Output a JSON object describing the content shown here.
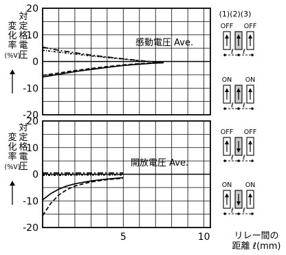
{
  "chart_data": [
    {
      "type": "line",
      "annotation": "感動電圧 Ave.",
      "ylabel": [
        "変",
        "化",
        "率",
        "(%V)",
        "対",
        "定",
        "格",
        "電",
        "圧"
      ],
      "xlim": [
        0,
        10.4
      ],
      "ylim": [
        -20,
        20
      ],
      "yticks": [
        "20",
        "10",
        "0",
        "-10",
        "-20"
      ],
      "series": [
        {
          "style": "solid",
          "x": [
            0,
            1,
            2,
            3,
            4,
            5,
            6,
            7,
            7.5
          ],
          "y": [
            -5.8,
            -4.8,
            -3.8,
            -3.0,
            -2.2,
            -1.5,
            -1.0,
            -0.6,
            -0.5
          ]
        },
        {
          "style": "dashed",
          "x": [
            0,
            1,
            2,
            3,
            4,
            5,
            6,
            7,
            7.5
          ],
          "y": [
            -5.2,
            -4.3,
            -3.4,
            -2.6,
            -1.9,
            -1.3,
            -0.8,
            -0.5,
            -0.4
          ]
        },
        {
          "style": "dashdot",
          "x": [
            0,
            1,
            2,
            3,
            4,
            5,
            6,
            7,
            7.5
          ],
          "y": [
            5.4,
            4.2,
            3.3,
            2.4,
            1.7,
            1.0,
            0.4,
            -0.2,
            -0.4
          ]
        },
        {
          "style": "dashdot2",
          "x": [
            0,
            1,
            2,
            3,
            4,
            5,
            6,
            7,
            7.5
          ],
          "y": [
            4.2,
            3.5,
            2.8,
            2.1,
            1.5,
            0.9,
            0.3,
            -0.2,
            -0.3
          ]
        }
      ]
    },
    {
      "type": "line",
      "annotation": "開放電圧 Ave.",
      "ylabel": [
        "変",
        "化",
        "率",
        "(%V)",
        "対",
        "定",
        "格",
        "電",
        "圧"
      ],
      "xlim": [
        0,
        10.4
      ],
      "ylim": [
        -20,
        20
      ],
      "yticks": [
        "20",
        "10",
        "0",
        "-10",
        "-20"
      ],
      "xticks": [
        {
          "value": 5,
          "label": "5"
        },
        {
          "value": 10,
          "label": "10"
        }
      ],
      "xlabel": [
        "リレー間の",
        "距離 ℓ(mm)"
      ],
      "series": [
        {
          "style": "solid",
          "x": [
            0,
            0.5,
            1,
            1.5,
            2,
            3,
            4,
            5
          ],
          "y": [
            -9.6,
            -7.3,
            -5.6,
            -4.4,
            -3.6,
            -2.5,
            -1.8,
            -1.3
          ]
        },
        {
          "style": "dashed",
          "x": [
            0,
            0.5,
            1,
            1.5,
            2,
            3,
            4,
            5
          ],
          "y": [
            -15.5,
            -11.0,
            -7.8,
            -5.8,
            -4.4,
            -2.9,
            -2.0,
            -1.5
          ]
        },
        {
          "style": "dashdot",
          "x": [
            0,
            1,
            2,
            3,
            4,
            5
          ],
          "y": [
            0.5,
            0.5,
            0.5,
            0.5,
            0.5,
            0.5
          ]
        },
        {
          "style": "dashdot2",
          "x": [
            0,
            1,
            2,
            3,
            4,
            5
          ],
          "y": [
            -0.4,
            -0.4,
            -0.3,
            -0.3,
            -0.3,
            -0.3
          ]
        }
      ]
    }
  ],
  "legend": {
    "positions": [
      "(1)",
      "(2)",
      "(3)"
    ],
    "ell": "ℓ",
    "groups": [
      {
        "left": "OFF",
        "right": "OFF",
        "arrows": [
          "up",
          "up",
          "up"
        ],
        "markers": "dots"
      },
      {
        "left": "ON",
        "right": "ON",
        "arrows": [
          "up",
          "up",
          "up"
        ],
        "markers": "dots"
      },
      {
        "left": "OFF",
        "right": "OFF",
        "arrows": [
          "up",
          "down",
          "up"
        ],
        "markers": "dots"
      },
      {
        "left": "ON",
        "right": "ON",
        "arrows": [
          "up",
          "down",
          "up"
        ],
        "markers": "dots"
      }
    ]
  },
  "colors": {
    "line": "#000000",
    "shade": "#c8c8c8"
  }
}
